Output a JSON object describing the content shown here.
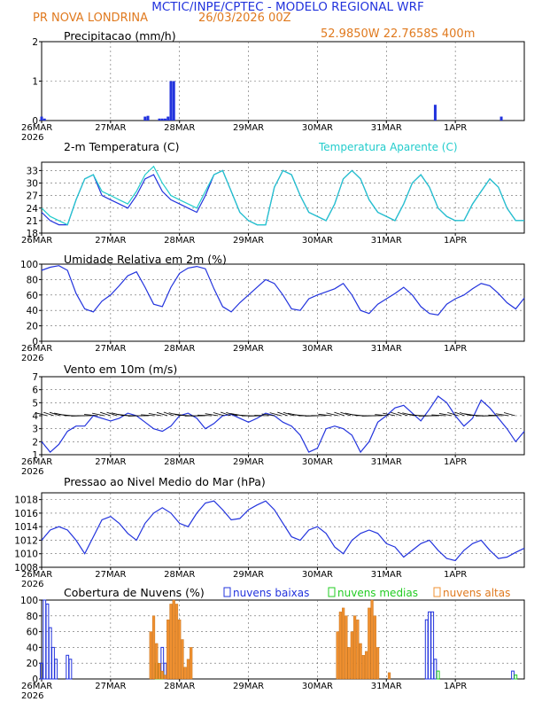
{
  "header": {
    "title": "MCTIC/INPE/CPTEC - MODELO REGIONAL WRF",
    "location": "PR NOVA LONDRINA",
    "run": "26/03/2026 00Z",
    "coords": "52.9850W 22.7658S 400m"
  },
  "colors": {
    "blue": "#2233dd",
    "cyan": "#22cccc",
    "orange": "#f09030",
    "green": "#22cc22",
    "text_blue": "#2233dd",
    "text_orange": "#e07a1f"
  },
  "time_axis": {
    "hours": 144,
    "ticks": [
      {
        "h": 0,
        "label": "26MAR"
      },
      {
        "h": 24,
        "label": "27MAR"
      },
      {
        "h": 48,
        "label": "28MAR"
      },
      {
        "h": 72,
        "label": "29MAR"
      },
      {
        "h": 96,
        "label": "30MAR"
      },
      {
        "h": 120,
        "label": "31MAR"
      },
      {
        "h": 144,
        "label": "1APR"
      }
    ],
    "year": "2026"
  },
  "chart_data": [
    {
      "type": "bar",
      "title": "Precipitacao (mm/h)",
      "ylim": [
        0,
        2
      ],
      "yticks": [
        "0",
        "1",
        "2"
      ],
      "x": [
        0,
        1,
        36,
        37,
        41,
        42,
        43,
        44,
        45,
        46,
        137,
        160
      ],
      "values": [
        0.1,
        0.05,
        0.1,
        0.12,
        0.05,
        0.05,
        0.05,
        0.1,
        1.0,
        1.0,
        0.4,
        0.1
      ]
    },
    {
      "type": "line",
      "title": "2-m Temperatura (C)",
      "legend": "Temperatura Aparente (C)",
      "ylim": [
        18,
        35
      ],
      "yticks": [
        "18",
        "21",
        "24",
        "27",
        "30",
        "33"
      ],
      "series": [
        {
          "name": "Temperatura",
          "color": "blue",
          "x": [
            0,
            3,
            6,
            9,
            12,
            15,
            18,
            21,
            24,
            27,
            30,
            33,
            36,
            39,
            42,
            45,
            48,
            51,
            54,
            57,
            60,
            63,
            66,
            69,
            72,
            75,
            78,
            81,
            84,
            87,
            90,
            93,
            96,
            99,
            102,
            105,
            108,
            111,
            114,
            117,
            120,
            123,
            126,
            129,
            132,
            135,
            138,
            141,
            144,
            147,
            150,
            153,
            156,
            159,
            162,
            165,
            168
          ],
          "values": [
            23,
            21,
            20,
            20,
            26,
            31,
            32,
            27,
            26,
            25,
            24,
            27,
            31,
            32,
            28,
            26,
            25,
            24,
            23,
            27,
            32,
            33,
            28,
            23,
            21,
            20,
            20,
            29,
            33,
            32,
            27,
            23,
            22,
            21,
            25,
            31,
            33,
            31,
            26,
            23,
            22,
            21,
            25,
            30,
            32,
            29,
            24,
            22,
            21,
            21,
            25,
            28,
            31,
            29,
            24,
            21,
            21
          ]
        },
        {
          "name": "Temperatura Aparente",
          "color": "cyan",
          "x": [
            0,
            3,
            6,
            9,
            12,
            15,
            18,
            21,
            24,
            27,
            30,
            33,
            36,
            39,
            42,
            45,
            48,
            51,
            54,
            57,
            60,
            63,
            66,
            69,
            72,
            75,
            78,
            81,
            84,
            87,
            90,
            93,
            96,
            99,
            102,
            105,
            108,
            111,
            114,
            117,
            120,
            123,
            126,
            129,
            132,
            135,
            138,
            141,
            144,
            147,
            150,
            153,
            156,
            159,
            162,
            165,
            168
          ],
          "values": [
            24,
            22,
            21,
            20,
            26,
            31,
            32,
            28,
            27,
            26,
            25,
            28,
            32,
            34,
            30,
            27,
            26,
            25,
            24,
            28,
            32,
            33,
            28,
            23,
            21,
            20,
            20,
            29,
            33,
            32,
            27,
            23,
            22,
            21,
            25,
            31,
            33,
            31,
            26,
            23,
            22,
            21,
            25,
            30,
            32,
            29,
            24,
            22,
            21,
            21,
            25,
            28,
            31,
            29,
            24,
            21,
            21
          ]
        }
      ]
    },
    {
      "type": "line",
      "title": "Umidade Relativa em 2m (%)",
      "ylim": [
        0,
        100
      ],
      "yticks": [
        "0",
        "20",
        "40",
        "60",
        "80",
        "100"
      ],
      "series": [
        {
          "name": "Umidade",
          "color": "blue",
          "x": [
            0,
            3,
            6,
            9,
            12,
            15,
            18,
            21,
            24,
            27,
            30,
            33,
            36,
            39,
            42,
            45,
            48,
            51,
            54,
            57,
            60,
            63,
            66,
            69,
            72,
            75,
            78,
            81,
            84,
            87,
            90,
            93,
            96,
            99,
            102,
            105,
            108,
            111,
            114,
            117,
            120,
            123,
            126,
            129,
            132,
            135,
            138,
            141,
            144,
            147,
            150,
            153,
            156,
            159,
            162,
            165,
            168
          ],
          "values": [
            92,
            96,
            98,
            92,
            62,
            42,
            38,
            52,
            60,
            72,
            85,
            90,
            70,
            48,
            45,
            70,
            88,
            95,
            97,
            94,
            68,
            45,
            38,
            50,
            60,
            70,
            80,
            75,
            60,
            42,
            40,
            55,
            60,
            64,
            68,
            75,
            60,
            40,
            36,
            48,
            55,
            62,
            70,
            60,
            45,
            36,
            34,
            48,
            55,
            60,
            68,
            75,
            72,
            62,
            50,
            42,
            56
          ]
        }
      ]
    },
    {
      "type": "line",
      "title": "Vento em 10m (m/s)",
      "ylim": [
        1,
        7
      ],
      "yticks": [
        "1",
        "2",
        "3",
        "4",
        "5",
        "6",
        "7"
      ],
      "series": [
        {
          "name": "Vento",
          "color": "blue",
          "x": [
            0,
            3,
            6,
            9,
            12,
            15,
            18,
            21,
            24,
            27,
            30,
            33,
            36,
            39,
            42,
            45,
            48,
            51,
            54,
            57,
            60,
            63,
            66,
            69,
            72,
            75,
            78,
            81,
            84,
            87,
            90,
            93,
            96,
            99,
            102,
            105,
            108,
            111,
            114,
            117,
            120,
            123,
            126,
            129,
            132,
            135,
            138,
            141,
            144,
            147,
            150,
            153,
            156,
            159,
            162,
            165,
            168
          ],
          "values": [
            2,
            1.2,
            1.8,
            2.8,
            3.2,
            3.2,
            4.0,
            3.8,
            3.6,
            3.8,
            4.2,
            4.0,
            3.5,
            3.0,
            2.8,
            3.2,
            4.0,
            4.2,
            3.8,
            3.0,
            3.4,
            4.0,
            4.1,
            3.8,
            3.5,
            3.8,
            4.2,
            4.0,
            3.5,
            3.2,
            2.5,
            1.2,
            1.5,
            3.0,
            3.2,
            3.0,
            2.5,
            1.2,
            2.0,
            3.5,
            4.0,
            4.6,
            4.8,
            4.2,
            3.6,
            4.5,
            5.5,
            5.0,
            4.0,
            3.2,
            3.8,
            5.2,
            4.6,
            3.8,
            3.0,
            2.0,
            2.8
          ]
        }
      ]
    },
    {
      "type": "line",
      "title": "Pressao ao Nivel Medio do Mar (hPa)",
      "ylim": [
        1008,
        1019
      ],
      "yticks": [
        "1008",
        "1010",
        "1012",
        "1014",
        "1016",
        "1018"
      ],
      "series": [
        {
          "name": "Pressao",
          "color": "blue",
          "x": [
            0,
            3,
            6,
            9,
            12,
            15,
            18,
            21,
            24,
            27,
            30,
            33,
            36,
            39,
            42,
            45,
            48,
            51,
            54,
            57,
            60,
            63,
            66,
            69,
            72,
            75,
            78,
            81,
            84,
            87,
            90,
            93,
            96,
            99,
            102,
            105,
            108,
            111,
            114,
            117,
            120,
            123,
            126,
            129,
            132,
            135,
            138,
            141,
            144,
            147,
            150,
            153,
            156,
            159,
            162,
            165,
            168
          ],
          "values": [
            1012,
            1013.5,
            1014,
            1013.5,
            1012,
            1010,
            1012.5,
            1015,
            1015.5,
            1014.5,
            1013,
            1012,
            1014.5,
            1016,
            1016.8,
            1016,
            1014.5,
            1014,
            1016,
            1017.5,
            1017.8,
            1016.5,
            1015,
            1015.2,
            1016.5,
            1017.2,
            1017.8,
            1016.5,
            1014.5,
            1012.5,
            1012,
            1013.5,
            1014,
            1013,
            1011,
            1010,
            1012,
            1013,
            1013.5,
            1013,
            1011.5,
            1011,
            1009.5,
            1010.5,
            1011.5,
            1012,
            1010.5,
            1009.3,
            1009,
            1010.5,
            1011.5,
            1012,
            1010.5,
            1009.3,
            1009.5,
            1010.2,
            1010.8
          ]
        }
      ]
    },
    {
      "type": "bar",
      "title": "Cobertura de Nuvens (%)",
      "ylim": [
        0,
        100
      ],
      "yticks": [
        "0",
        "20",
        "40",
        "60",
        "80",
        "100"
      ],
      "legend": [
        {
          "label": "nuvens baixas",
          "color": "blue"
        },
        {
          "label": "nuvens medias",
          "color": "green"
        },
        {
          "label": "nuvens altas",
          "color": "orange"
        }
      ],
      "series": [
        {
          "name": "nuvens baixas",
          "color": "blue",
          "style": "outline",
          "x": [
            0,
            1,
            2,
            3,
            4,
            5,
            9,
            10,
            41,
            42,
            43,
            134,
            135,
            136,
            137,
            164
          ],
          "values": [
            20,
            100,
            95,
            65,
            40,
            25,
            30,
            25,
            5,
            40,
            20,
            75,
            85,
            85,
            25,
            10
          ]
        },
        {
          "name": "nuvens medias",
          "color": "green",
          "style": "outline",
          "x": [
            40,
            41,
            42,
            138,
            165
          ],
          "values": [
            20,
            10,
            8,
            10,
            5
          ]
        },
        {
          "name": "nuvens altas",
          "color": "orange",
          "style": "fill",
          "x": [
            38,
            39,
            40,
            41,
            42,
            43,
            44,
            45,
            46,
            47,
            48,
            49,
            50,
            51,
            52,
            103,
            104,
            105,
            106,
            107,
            108,
            109,
            110,
            111,
            112,
            113,
            114,
            115,
            116,
            117,
            121
          ],
          "values": [
            60,
            80,
            45,
            20,
            10,
            5,
            75,
            95,
            100,
            95,
            75,
            50,
            15,
            25,
            40,
            60,
            85,
            90,
            80,
            40,
            60,
            80,
            75,
            45,
            30,
            35,
            90,
            100,
            80,
            40,
            8
          ]
        }
      ]
    }
  ]
}
